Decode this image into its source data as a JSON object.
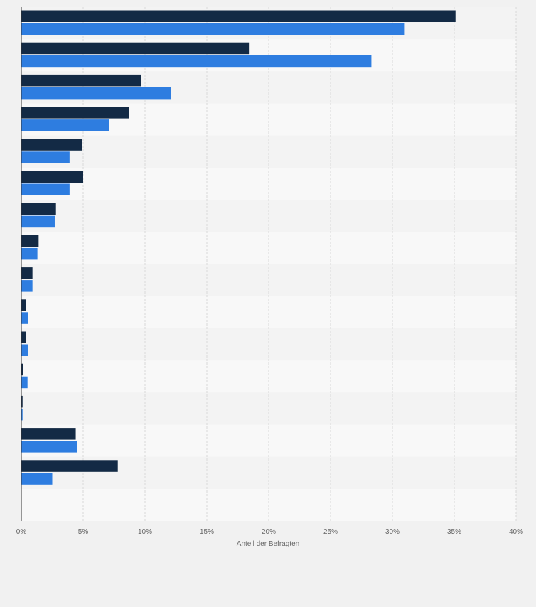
{
  "chart_data": {
    "type": "bar",
    "orientation": "horizontal",
    "categories": [
      "",
      "",
      "",
      "",
      "",
      "",
      "",
      "",
      "",
      "",
      "",
      "",
      "",
      "",
      ""
    ],
    "series": [
      {
        "color": "#132a45",
        "values": [
          35.1,
          18.4,
          9.7,
          8.7,
          4.9,
          5.0,
          2.8,
          1.4,
          0.9,
          0.4,
          0.4,
          0.15,
          0.1,
          4.4,
          7.8
        ]
      },
      {
        "color": "#2e7de0",
        "values": [
          31.0,
          28.3,
          12.1,
          7.1,
          3.9,
          3.9,
          2.7,
          1.3,
          0.9,
          0.55,
          0.55,
          0.5,
          0.1,
          4.5,
          2.5
        ]
      }
    ],
    "xlim": [
      0,
      40
    ],
    "xticks": [
      "0%",
      "5%",
      "10%",
      "15%",
      "20%",
      "25%",
      "30%",
      "35%",
      "40%"
    ],
    "xlabel": "Anteil der Befragten",
    "grid": true,
    "legend": "none"
  }
}
